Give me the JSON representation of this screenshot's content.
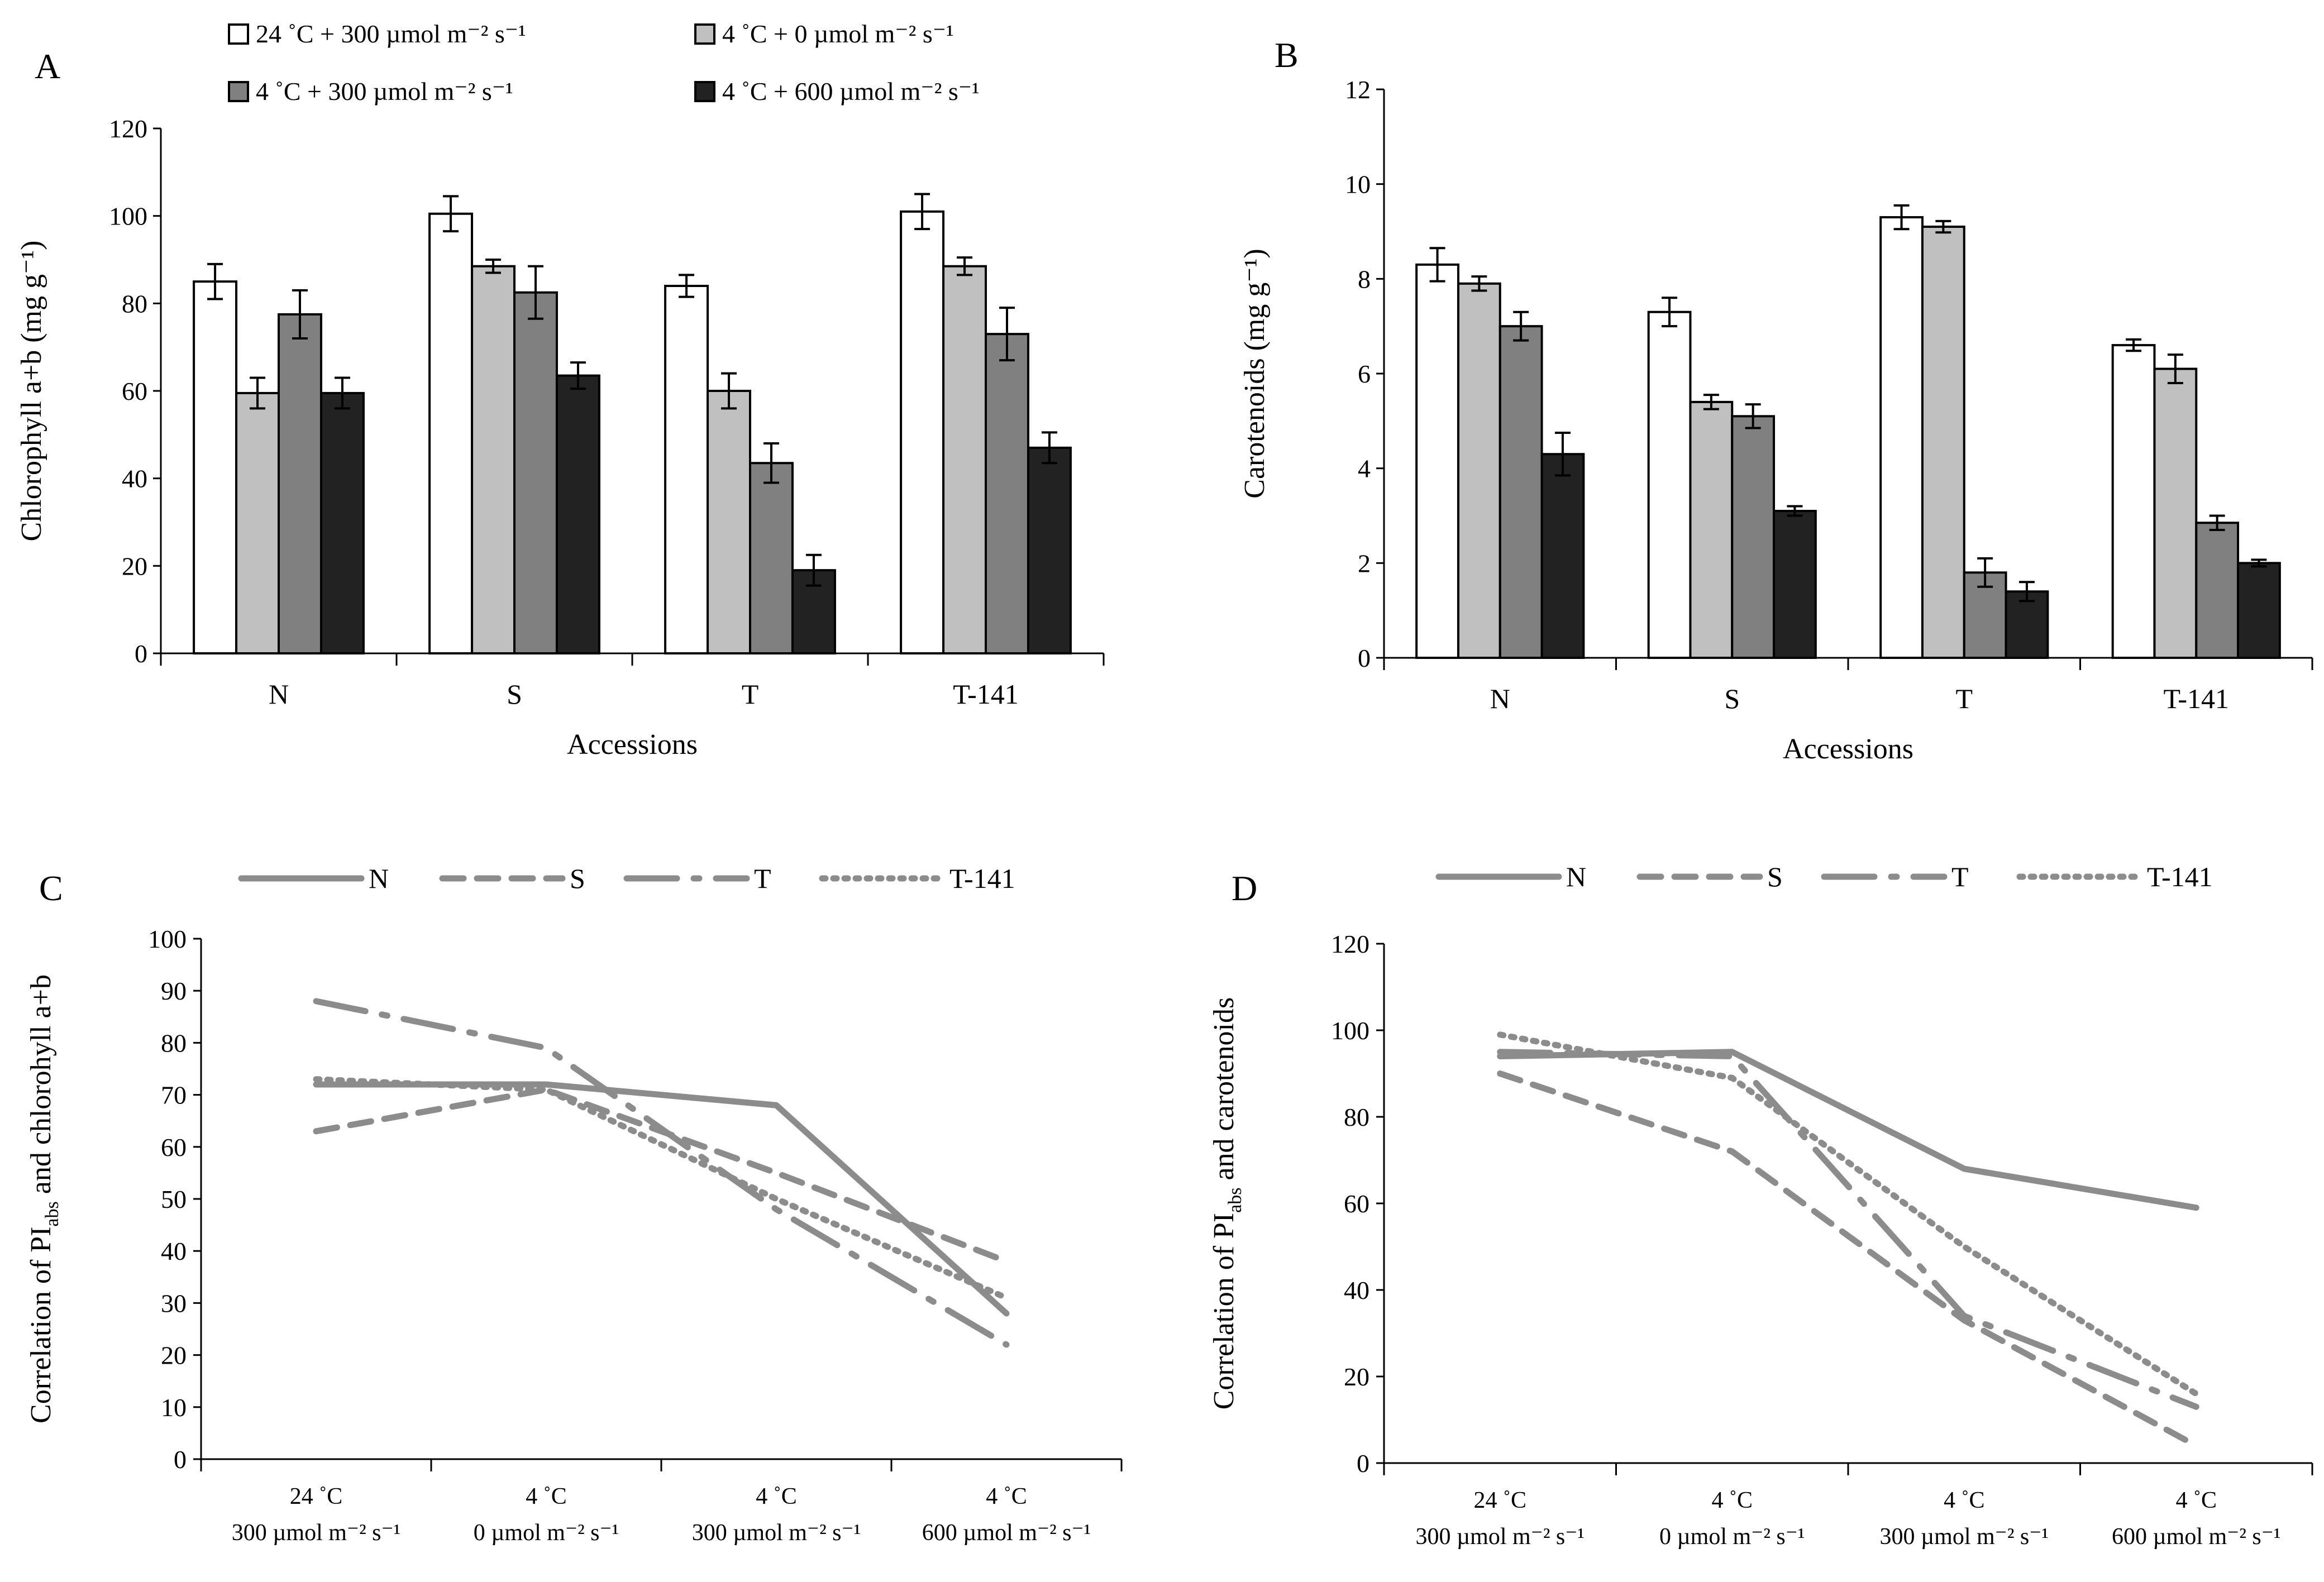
{
  "colors": {
    "series_fill": [
      "#ffffff",
      "#c0c0c0",
      "#808080",
      "#222222"
    ],
    "line": "#8c8c8c",
    "axis": "#000000"
  },
  "chart_data": [
    {
      "panel": "A",
      "type": "bar",
      "xlabel": "Accessions",
      "ylabel": "Chlorophyll a+b (mg g⁻¹)",
      "ylim": [
        0,
        120
      ],
      "yticks": [
        "0",
        "20",
        "40",
        "60",
        "80",
        "100",
        "120"
      ],
      "categories": [
        "N",
        "S",
        "T",
        "T-141"
      ],
      "legend": "top",
      "series": [
        {
          "name": "24 ˚C + 300 µmol m⁻² s⁻¹",
          "values": [
            85,
            100.5,
            84,
            101
          ],
          "errors": [
            4,
            4,
            2.5,
            4
          ]
        },
        {
          "name": "4 ˚C + 0 µmol m⁻² s⁻¹",
          "values": [
            59.5,
            88.5,
            60,
            88.5
          ],
          "errors": [
            3.5,
            1.5,
            4,
            2
          ]
        },
        {
          "name": "4 ˚C + 300 µmol m⁻² s⁻¹",
          "values": [
            77.5,
            82.5,
            43.5,
            73
          ],
          "errors": [
            5.5,
            6,
            4.5,
            6
          ]
        },
        {
          "name": "4 ˚C + 600 µmol m⁻² s⁻¹",
          "values": [
            59.5,
            63.5,
            19,
            47
          ],
          "errors": [
            3.5,
            3,
            3.5,
            3.5
          ]
        }
      ]
    },
    {
      "panel": "B",
      "type": "bar",
      "xlabel": "Accessions",
      "ylabel": "Carotenoids (mg g⁻¹)",
      "ylim": [
        0,
        12
      ],
      "yticks": [
        "0",
        "2",
        "4",
        "6",
        "8",
        "10",
        "12"
      ],
      "categories": [
        "N",
        "S",
        "T",
        "T-141"
      ],
      "series": [
        {
          "name": "24 ˚C + 300 µmol m⁻² s⁻¹",
          "values": [
            8.3,
            7.3,
            9.3,
            6.6
          ],
          "errors": [
            0.35,
            0.3,
            0.25,
            0.12
          ]
        },
        {
          "name": "4 ˚C + 0 µmol m⁻² s⁻¹",
          "values": [
            7.9,
            5.4,
            9.1,
            6.1
          ],
          "errors": [
            0.15,
            0.15,
            0.12,
            0.3
          ]
        },
        {
          "name": "4 ˚C + 300 µmol m⁻² s⁻¹",
          "values": [
            7.0,
            5.1,
            1.8,
            2.85
          ],
          "errors": [
            0.3,
            0.25,
            0.3,
            0.15
          ]
        },
        {
          "name": "4 ˚C + 600 µmol m⁻² s⁻¹",
          "values": [
            4.3,
            3.1,
            1.4,
            2.0
          ],
          "errors": [
            0.45,
            0.1,
            0.2,
            0.07
          ]
        }
      ]
    },
    {
      "panel": "C",
      "type": "line",
      "ylabel_parts": [
        "Correlation of PI",
        "abs",
        " and chlorohyll a+b"
      ],
      "ylim": [
        0,
        100
      ],
      "yticks": [
        "0",
        "10",
        "20",
        "30",
        "40",
        "50",
        "60",
        "70",
        "80",
        "90",
        "100"
      ],
      "categories": [
        [
          "24 ˚C",
          "300 µmol m⁻² s⁻¹"
        ],
        [
          "4 ˚C",
          "0 µmol m⁻² s⁻¹"
        ],
        [
          "4 ˚C",
          "300 µmol m⁻² s⁻¹"
        ],
        [
          "4 ˚C",
          "600 µmol m⁻² s⁻¹"
        ]
      ],
      "legend": "top",
      "series": [
        {
          "name": "N",
          "dash": "solid",
          "values": [
            72,
            72,
            68,
            28
          ]
        },
        {
          "name": "S",
          "dash": "dash",
          "values": [
            63,
            71,
            55,
            38
          ]
        },
        {
          "name": "T",
          "dash": "longdashdot",
          "values": [
            88,
            79,
            48,
            22
          ]
        },
        {
          "name": "T-141",
          "dash": "dot",
          "values": [
            73,
            71,
            50,
            31
          ]
        }
      ]
    },
    {
      "panel": "D",
      "type": "line",
      "ylabel_parts": [
        "Correlation of PI",
        "abs",
        " and carotenoids"
      ],
      "ylim": [
        0,
        120
      ],
      "yticks": [
        "0",
        "20",
        "40",
        "60",
        "80",
        "100",
        "120"
      ],
      "categories": [
        [
          "24 ˚C",
          "300 µmol m⁻² s⁻¹"
        ],
        [
          "4 ˚C",
          "0 µmol m⁻² s⁻¹"
        ],
        [
          "4 ˚C",
          "300 µmol m⁻² s⁻¹"
        ],
        [
          "4 ˚C",
          "600 µmol m⁻² s⁻¹"
        ]
      ],
      "legend": "top",
      "series": [
        {
          "name": "N",
          "dash": "solid",
          "values": [
            94,
            95,
            68,
            59
          ]
        },
        {
          "name": "S",
          "dash": "dash",
          "values": [
            90,
            72,
            33,
            4
          ]
        },
        {
          "name": "T",
          "dash": "longdashdot",
          "values": [
            95,
            94,
            34,
            13
          ]
        },
        {
          "name": "T-141",
          "dash": "dot",
          "values": [
            99,
            89,
            50,
            16
          ]
        }
      ]
    }
  ]
}
